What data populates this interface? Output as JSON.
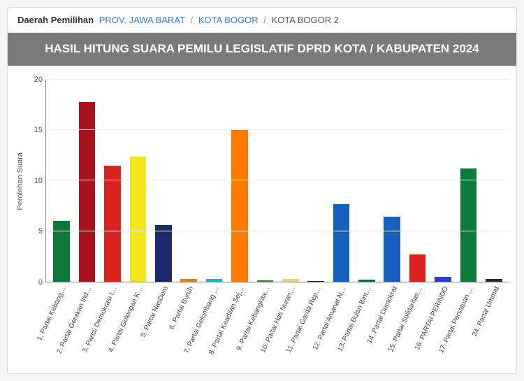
{
  "breadcrumb": {
    "label": "Daerah Pemilihan",
    "items": [
      {
        "text": "PROV. JAWA BARAT",
        "link": true
      },
      {
        "text": "KOTA BOGOR",
        "link": true
      },
      {
        "text": "KOTA BOGOR 2",
        "link": false
      }
    ],
    "separator": "/"
  },
  "title": "HASIL HITUNG SUARA PEMILU LEGISLATIF DPRD KOTA / KABUPATEN 2024",
  "chart": {
    "type": "bar",
    "ylabel": "Perolehan Suara",
    "ylim": [
      0,
      20
    ],
    "yticks": [
      0,
      5,
      10,
      15,
      20
    ],
    "grid_color": "#eeeeee",
    "axis_color": "#888888",
    "background_color": "#ffffff",
    "label_fontsize": 10,
    "ylabel_fontsize": 11,
    "bar_width": 0.65,
    "categories": [
      "1. Partai Kebang…",
      "2. Partai Gerakan Ind…",
      "3. Partai Demokrasi I…",
      "4. Partai Golongan K…",
      "5. Partai NasDem",
      "6. Partai Buruh",
      "7. Partai Gelombang …",
      "8. Partai Keadilan Sej…",
      "9. Partai Kebangkita…",
      "10. Partai Hati Nuran…",
      "11. Partai Garda Rep…",
      "12. Partai Amanat N…",
      "13. Partai Bulan Bint…",
      "14. Partai Demokrat",
      "15. Partai Solidaritas…",
      "16. PARTAI PERINDO",
      "17. Partai Persatuan …",
      "24. Partai Ummat"
    ],
    "values": [
      6.0,
      17.8,
      11.5,
      12.4,
      5.6,
      0.3,
      0.25,
      15.1,
      0.15,
      0.25,
      0.1,
      7.7,
      0.2,
      6.4,
      2.7,
      0.45,
      11.2,
      0.3
    ],
    "bar_colors": [
      "#0e7a3a",
      "#a8121a",
      "#d9231f",
      "#f7e319",
      "#1a2a6c",
      "#e58200",
      "#17b3c9",
      "#ff7a00",
      "#1f8f3a",
      "#ead66b",
      "#1a1a1a",
      "#1560bd",
      "#0e6b37",
      "#1560bd",
      "#d9231f",
      "#2e3fbe",
      "#0e7a3a",
      "#2b2b2b"
    ]
  },
  "colors": {
    "breadcrumb_link": "#3a7bd5",
    "title_bg": "#7a7a7a",
    "title_text": "#ffffff"
  }
}
